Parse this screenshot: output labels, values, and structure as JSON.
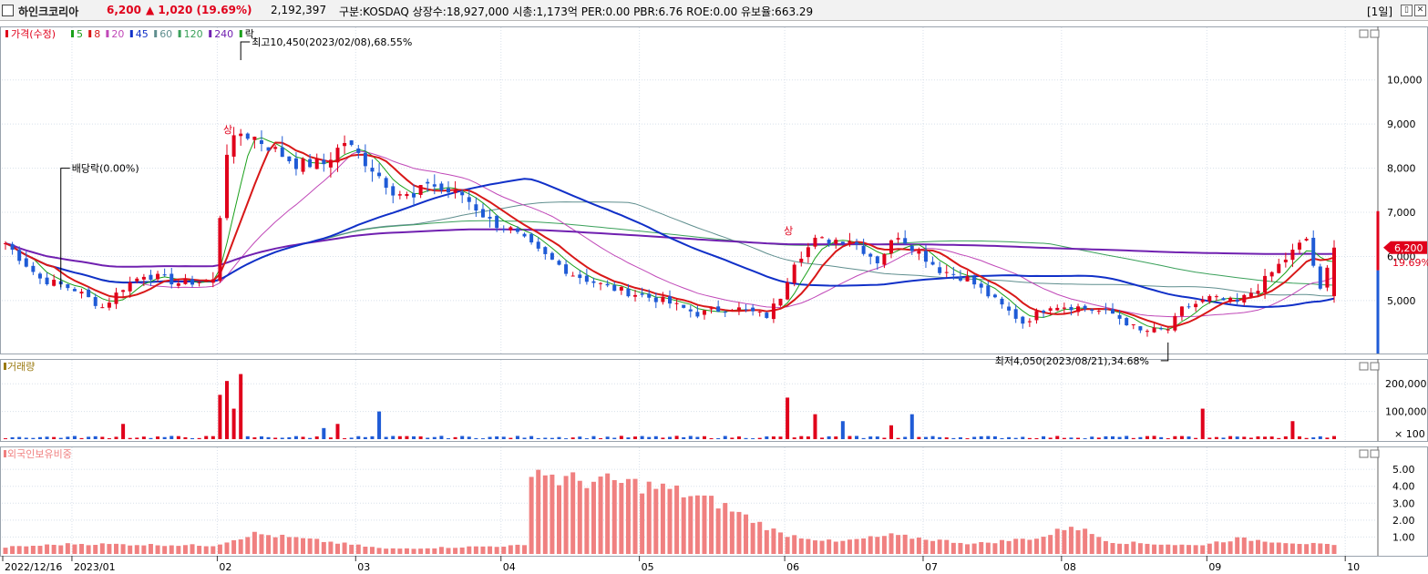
{
  "header": {
    "stock_name": "하인크코리아",
    "price": "6,200",
    "change": "▲ 1,020 (19.69%)",
    "volume": "2,192,397",
    "info": "구분:KOSDAQ 상장수:18,927,000 시총:1,173억 PER:0.00 PBR:6.76 ROE:0.00 유보율:663.29",
    "period": "[1일]",
    "window_buttons": [
      "▯",
      "✕"
    ]
  },
  "colors": {
    "up": "#e0001b",
    "down": "#1f5bd6",
    "ma5": "#1aa01a",
    "ma8": "#d81818",
    "ma20": "#c048b8",
    "ma45": "#1030c8",
    "ma60": "#5f8e8e",
    "ma120": "#3aa05a",
    "ma240": "#7020b0",
    "foreign": "#f08080",
    "grid": "#d8e0ea",
    "axis": "#333333"
  },
  "chart_data": [
    {
      "type": "candlestick",
      "title": "가격(수정)",
      "legend": [
        "가격(수정)",
        "5",
        "8",
        "20",
        "45",
        "60",
        "120",
        "240",
        "락"
      ],
      "y_ticks": [
        10000,
        9000,
        8000,
        7000,
        6000,
        5000
      ],
      "y_tick_labels": [
        "10,000",
        "9,000",
        "8,000",
        "7,000",
        "6,000",
        "5,000"
      ],
      "ylim": [
        3800,
        10800
      ],
      "x_tick_labels": [
        "2022/12/16",
        "2023/01",
        "02",
        "03",
        "04",
        "05",
        "06",
        "07",
        "08",
        "09",
        "10"
      ],
      "x_tick_index": [
        0,
        10,
        31,
        51,
        72,
        92,
        113,
        133,
        153,
        174,
        194
      ],
      "current_price_label": "6,200",
      "current_change_label": "19.69%",
      "annotations": {
        "high": "최고10,450(2023/02/08),68.55%",
        "low": "최저4,050(2023/08/21),34.68%",
        "dividend": "배당락(0.00%)",
        "limit_up_marks": [
          "상",
          "상"
        ]
      },
      "anchors": [
        {
          "i": 0,
          "p": 6300
        },
        {
          "i": 5,
          "p": 5500
        },
        {
          "i": 10,
          "p": 5250
        },
        {
          "i": 14,
          "p": 4850
        },
        {
          "i": 17,
          "p": 5300
        },
        {
          "i": 20,
          "p": 5600
        },
        {
          "i": 25,
          "p": 5400
        },
        {
          "i": 30,
          "p": 5450
        },
        {
          "i": 32,
          "p": 8400
        },
        {
          "i": 34,
          "p": 8800
        },
        {
          "i": 36,
          "p": 8700
        },
        {
          "i": 42,
          "p": 8100
        },
        {
          "i": 46,
          "p": 8100
        },
        {
          "i": 49,
          "p": 8600
        },
        {
          "i": 53,
          "p": 8000
        },
        {
          "i": 56,
          "p": 7500
        },
        {
          "i": 59,
          "p": 7300
        },
        {
          "i": 61,
          "p": 7700
        },
        {
          "i": 63,
          "p": 7500
        },
        {
          "i": 66,
          "p": 7400
        },
        {
          "i": 70,
          "p": 6800
        },
        {
          "i": 73,
          "p": 6600
        },
        {
          "i": 77,
          "p": 6100
        },
        {
          "i": 82,
          "p": 5600
        },
        {
          "i": 87,
          "p": 5300
        },
        {
          "i": 95,
          "p": 5000
        },
        {
          "i": 100,
          "p": 4700
        },
        {
          "i": 105,
          "p": 4850
        },
        {
          "i": 110,
          "p": 4650
        },
        {
          "i": 112,
          "p": 5100
        },
        {
          "i": 114,
          "p": 5900
        },
        {
          "i": 117,
          "p": 6350
        },
        {
          "i": 122,
          "p": 6400
        },
        {
          "i": 126,
          "p": 5900
        },
        {
          "i": 129,
          "p": 6500
        },
        {
          "i": 132,
          "p": 6100
        },
        {
          "i": 135,
          "p": 5700
        },
        {
          "i": 139,
          "p": 5500
        },
        {
          "i": 143,
          "p": 5000
        },
        {
          "i": 147,
          "p": 4500
        },
        {
          "i": 151,
          "p": 4900
        },
        {
          "i": 155,
          "p": 4850
        },
        {
          "i": 160,
          "p": 4700
        },
        {
          "i": 164,
          "p": 4300
        },
        {
          "i": 168,
          "p": 4350
        },
        {
          "i": 170,
          "p": 4800
        },
        {
          "i": 174,
          "p": 5050
        },
        {
          "i": 178,
          "p": 4950
        },
        {
          "i": 181,
          "p": 5300
        },
        {
          "i": 184,
          "p": 5800
        },
        {
          "i": 188,
          "p": 6400
        },
        {
          "i": 190,
          "p": 5200
        },
        {
          "i": 192,
          "p": 6200
        }
      ],
      "volume_spikes": [
        {
          "i": 17,
          "v": 55000
        },
        {
          "i": 31,
          "v": 160000
        },
        {
          "i": 32,
          "v": 210000
        },
        {
          "i": 33,
          "v": 110000
        },
        {
          "i": 34,
          "v": 235000
        },
        {
          "i": 46,
          "v": 40000
        },
        {
          "i": 48,
          "v": 55000
        },
        {
          "i": 54,
          "v": 100000
        },
        {
          "i": 113,
          "v": 150000
        },
        {
          "i": 117,
          "v": 90000
        },
        {
          "i": 121,
          "v": 65000
        },
        {
          "i": 128,
          "v": 50000
        },
        {
          "i": 131,
          "v": 90000
        },
        {
          "i": 173,
          "v": 110000
        },
        {
          "i": 186,
          "v": 65000
        }
      ],
      "foreign_curve_note": "외국인보유비중 bar series"
    },
    {
      "type": "bar",
      "title": "거래량",
      "y_tick_labels": [
        "200,000",
        "100,000",
        "× 100"
      ],
      "y_ticks": [
        200000,
        100000
      ],
      "ylim": [
        0,
        250000
      ]
    },
    {
      "type": "bar",
      "title": "외국인보유비중",
      "y_tick_labels": [
        "5.00",
        "4.00",
        "3.00",
        "2.00",
        "1.00"
      ],
      "y_ticks": [
        5,
        4,
        3,
        2,
        1
      ],
      "ylim": [
        0,
        5.6
      ],
      "anchors": [
        {
          "i": 0,
          "v": 0.4
        },
        {
          "i": 10,
          "v": 0.6
        },
        {
          "i": 30,
          "v": 0.5
        },
        {
          "i": 36,
          "v": 1.2
        },
        {
          "i": 45,
          "v": 0.8
        },
        {
          "i": 55,
          "v": 0.3
        },
        {
          "i": 75,
          "v": 0.5
        },
        {
          "i": 76,
          "v": 5.2
        },
        {
          "i": 80,
          "v": 4.4
        },
        {
          "i": 90,
          "v": 4.2
        },
        {
          "i": 96,
          "v": 3.8
        },
        {
          "i": 103,
          "v": 3.0
        },
        {
          "i": 108,
          "v": 2.0
        },
        {
          "i": 112,
          "v": 1.2
        },
        {
          "i": 120,
          "v": 0.7
        },
        {
          "i": 128,
          "v": 1.1
        },
        {
          "i": 140,
          "v": 0.6
        },
        {
          "i": 150,
          "v": 1.0
        },
        {
          "i": 154,
          "v": 1.7
        },
        {
          "i": 160,
          "v": 0.7
        },
        {
          "i": 172,
          "v": 0.5
        },
        {
          "i": 178,
          "v": 0.9
        },
        {
          "i": 192,
          "v": 0.5
        }
      ]
    }
  ]
}
